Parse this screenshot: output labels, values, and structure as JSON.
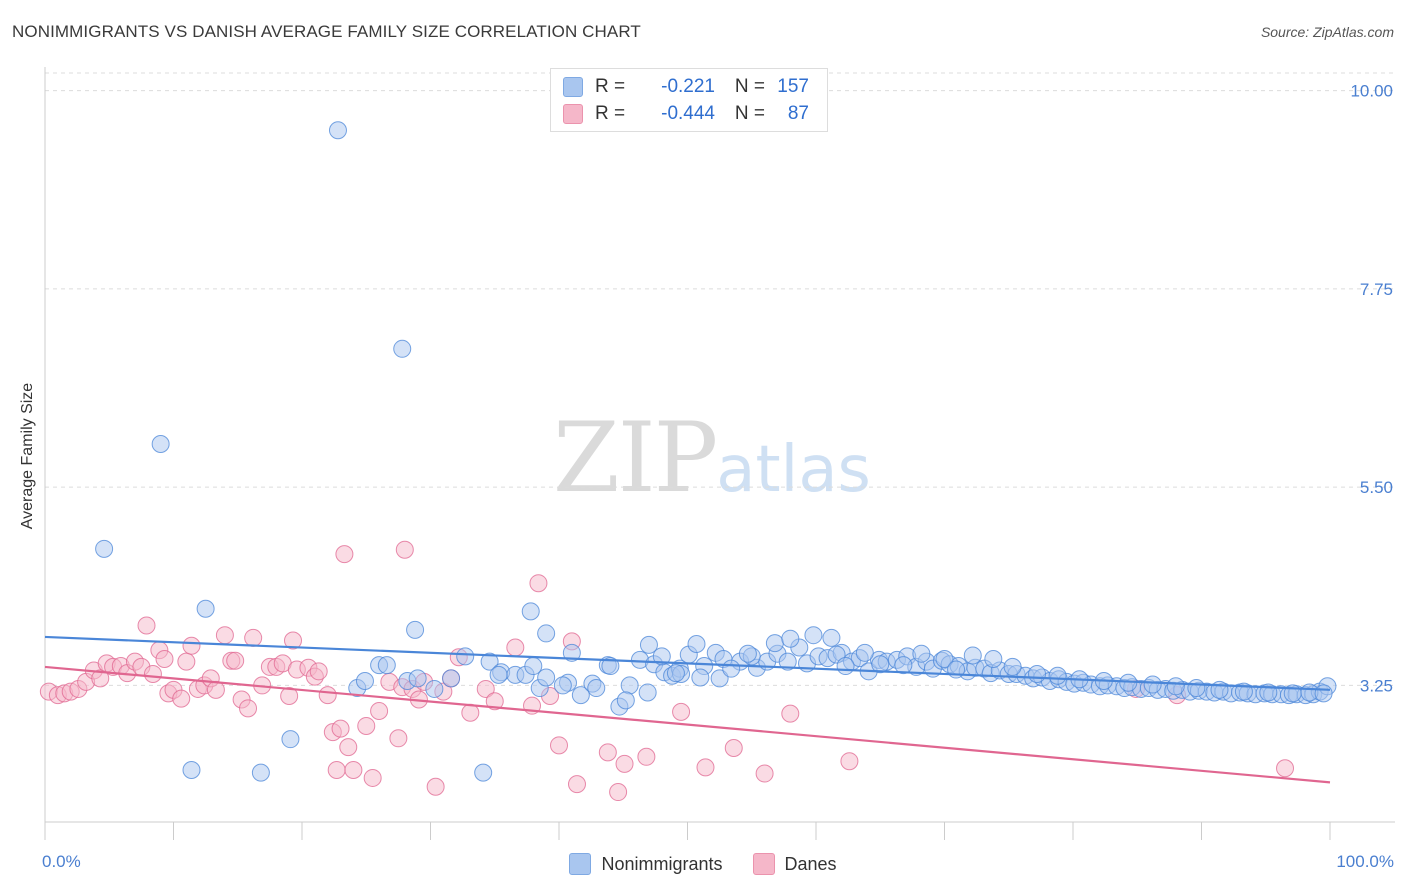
{
  "title": "NONIMMIGRANTS VS DANISH AVERAGE FAMILY SIZE CORRELATION CHART",
  "source": "Source: ZipAtlas.com",
  "watermark": {
    "zip": "ZIP",
    "atlas": "atlas"
  },
  "legend_stats": [
    {
      "r_label": "R =",
      "r_value": "-0.221",
      "n_label": "N =",
      "n_value": "157",
      "color": "#a9c6ef"
    },
    {
      "r_label": "R =",
      "r_value": "-0.444",
      "n_label": "N =",
      "n_value": "87",
      "color": "#f5b7c9"
    }
  ],
  "chart_data": {
    "type": "scatter",
    "title": "NONIMMIGRANTS VS DANISH AVERAGE FAMILY SIZE CORRELATION CHART",
    "xlabel": "",
    "ylabel": "Average Family Size",
    "xlim": [
      0,
      100
    ],
    "ylim": [
      1.7,
      10.2
    ],
    "x_tick_labels": [
      "0.0%",
      "100.0%"
    ],
    "y_ticks": [
      3.25,
      5.5,
      7.75,
      10.0
    ],
    "y_tick_labels": [
      "3.25",
      "5.50",
      "7.75",
      "10.00"
    ],
    "grid": "horizontal dashed",
    "legend": "bottom",
    "series": [
      {
        "name": "Nonimmigrants",
        "color": "#4a86d8",
        "fill": "#a9c6ef",
        "trend": {
          "x": [
            0,
            100
          ],
          "y": [
            3.8,
            3.2
          ]
        },
        "points": [
          [
            22.8,
            9.55
          ],
          [
            27.8,
            7.07
          ],
          [
            9.0,
            5.99
          ],
          [
            4.6,
            4.8
          ],
          [
            12.5,
            4.12
          ],
          [
            11.4,
            2.29
          ],
          [
            16.8,
            2.26
          ],
          [
            19.1,
            2.64
          ],
          [
            34.1,
            2.26
          ],
          [
            39.0,
            3.84
          ],
          [
            37.8,
            4.09
          ],
          [
            28.8,
            3.88
          ],
          [
            34.6,
            3.52
          ],
          [
            26.0,
            3.48
          ],
          [
            26.6,
            3.48
          ],
          [
            24.3,
            3.22
          ],
          [
            24.9,
            3.3
          ],
          [
            28.2,
            3.3
          ],
          [
            29.0,
            3.33
          ],
          [
            31.6,
            3.33
          ],
          [
            35.5,
            3.4
          ],
          [
            36.6,
            3.37
          ],
          [
            37.4,
            3.37
          ],
          [
            38.5,
            3.22
          ],
          [
            39.0,
            3.34
          ],
          [
            40.7,
            3.28
          ],
          [
            41.7,
            3.14
          ],
          [
            42.6,
            3.27
          ],
          [
            43.8,
            3.48
          ],
          [
            44.7,
            3.01
          ],
          [
            45.5,
            3.25
          ],
          [
            46.3,
            3.54
          ],
          [
            47.4,
            3.49
          ],
          [
            48.2,
            3.4
          ],
          [
            48.8,
            3.36
          ],
          [
            49.4,
            3.44
          ],
          [
            50.1,
            3.6
          ],
          [
            50.7,
            3.72
          ],
          [
            51.3,
            3.47
          ],
          [
            52.2,
            3.62
          ],
          [
            52.8,
            3.55
          ],
          [
            54.1,
            3.52
          ],
          [
            55.4,
            3.45
          ],
          [
            56.2,
            3.52
          ],
          [
            57.0,
            3.61
          ],
          [
            57.8,
            3.52
          ],
          [
            58.7,
            3.68
          ],
          [
            59.3,
            3.5
          ],
          [
            60.2,
            3.58
          ],
          [
            60.9,
            3.56
          ],
          [
            62.0,
            3.62
          ],
          [
            62.8,
            3.52
          ],
          [
            63.4,
            3.56
          ],
          [
            64.1,
            3.41
          ],
          [
            64.9,
            3.54
          ],
          [
            65.5,
            3.52
          ],
          [
            66.3,
            3.54
          ],
          [
            67.1,
            3.58
          ],
          [
            67.8,
            3.46
          ],
          [
            68.6,
            3.52
          ],
          [
            69.1,
            3.44
          ],
          [
            69.8,
            3.53
          ],
          [
            70.4,
            3.49
          ],
          [
            71.1,
            3.47
          ],
          [
            71.8,
            3.41
          ],
          [
            72.4,
            3.45
          ],
          [
            73.1,
            3.44
          ],
          [
            73.6,
            3.39
          ],
          [
            74.3,
            3.42
          ],
          [
            75.0,
            3.38
          ],
          [
            75.6,
            3.38
          ],
          [
            76.3,
            3.36
          ],
          [
            76.9,
            3.33
          ],
          [
            77.6,
            3.34
          ],
          [
            78.2,
            3.3
          ],
          [
            78.9,
            3.32
          ],
          [
            79.5,
            3.29
          ],
          [
            80.1,
            3.27
          ],
          [
            80.8,
            3.28
          ],
          [
            81.4,
            3.26
          ],
          [
            82.1,
            3.24
          ],
          [
            82.7,
            3.25
          ],
          [
            83.4,
            3.24
          ],
          [
            84.0,
            3.22
          ],
          [
            84.6,
            3.23
          ],
          [
            85.3,
            3.21
          ],
          [
            85.9,
            3.22
          ],
          [
            86.6,
            3.2
          ],
          [
            87.2,
            3.21
          ],
          [
            87.8,
            3.19
          ],
          [
            88.5,
            3.2
          ],
          [
            89.1,
            3.18
          ],
          [
            89.8,
            3.19
          ],
          [
            90.4,
            3.18
          ],
          [
            91.0,
            3.17
          ],
          [
            91.7,
            3.18
          ],
          [
            92.3,
            3.16
          ],
          [
            93.0,
            3.17
          ],
          [
            93.6,
            3.16
          ],
          [
            94.2,
            3.15
          ],
          [
            94.9,
            3.16
          ],
          [
            95.5,
            3.15
          ],
          [
            96.2,
            3.15
          ],
          [
            96.8,
            3.14
          ],
          [
            97.4,
            3.15
          ],
          [
            98.1,
            3.14
          ],
          [
            98.7,
            3.15
          ],
          [
            99.2,
            3.18
          ],
          [
            99.8,
            3.24
          ],
          [
            38.0,
            3.47
          ],
          [
            41.0,
            3.62
          ],
          [
            44.0,
            3.47
          ],
          [
            47.0,
            3.71
          ],
          [
            49.5,
            3.38
          ],
          [
            52.5,
            3.33
          ],
          [
            55.0,
            3.58
          ],
          [
            56.8,
            3.73
          ],
          [
            58.0,
            3.78
          ],
          [
            59.8,
            3.82
          ],
          [
            61.2,
            3.79
          ],
          [
            61.6,
            3.6
          ],
          [
            62.3,
            3.47
          ],
          [
            63.8,
            3.62
          ],
          [
            65.0,
            3.49
          ],
          [
            66.8,
            3.48
          ],
          [
            68.2,
            3.61
          ],
          [
            70.0,
            3.55
          ],
          [
            70.9,
            3.43
          ],
          [
            72.2,
            3.59
          ],
          [
            73.8,
            3.55
          ],
          [
            75.3,
            3.46
          ],
          [
            77.2,
            3.38
          ],
          [
            78.8,
            3.36
          ],
          [
            80.5,
            3.32
          ],
          [
            82.4,
            3.3
          ],
          [
            84.3,
            3.28
          ],
          [
            86.2,
            3.26
          ],
          [
            88.0,
            3.24
          ],
          [
            89.6,
            3.22
          ],
          [
            91.4,
            3.2
          ],
          [
            93.3,
            3.18
          ],
          [
            95.2,
            3.17
          ],
          [
            97.1,
            3.16
          ],
          [
            98.4,
            3.17
          ],
          [
            99.5,
            3.16
          ],
          [
            30.3,
            3.21
          ],
          [
            32.7,
            3.58
          ],
          [
            35.3,
            3.37
          ],
          [
            40.3,
            3.25
          ],
          [
            42.9,
            3.22
          ],
          [
            45.2,
            3.08
          ],
          [
            46.9,
            3.17
          ],
          [
            48.0,
            3.58
          ],
          [
            49.1,
            3.39
          ],
          [
            51.0,
            3.34
          ],
          [
            53.4,
            3.44
          ],
          [
            54.7,
            3.61
          ]
        ]
      },
      {
        "name": "Danes",
        "color": "#e06690",
        "fill": "#f5b7c9",
        "trend": {
          "x": [
            0,
            100
          ],
          "y": [
            3.46,
            2.15
          ]
        },
        "points": [
          [
            0.3,
            3.18
          ],
          [
            1.0,
            3.14
          ],
          [
            1.5,
            3.16
          ],
          [
            2.0,
            3.18
          ],
          [
            2.6,
            3.21
          ],
          [
            3.2,
            3.29
          ],
          [
            3.8,
            3.42
          ],
          [
            4.3,
            3.33
          ],
          [
            4.8,
            3.5
          ],
          [
            5.3,
            3.46
          ],
          [
            5.9,
            3.47
          ],
          [
            6.4,
            3.39
          ],
          [
            7.0,
            3.52
          ],
          [
            7.5,
            3.46
          ],
          [
            7.9,
            3.93
          ],
          [
            8.4,
            3.38
          ],
          [
            8.9,
            3.65
          ],
          [
            9.3,
            3.55
          ],
          [
            9.6,
            3.16
          ],
          [
            10.0,
            3.2
          ],
          [
            10.6,
            3.1
          ],
          [
            11.0,
            3.52
          ],
          [
            11.4,
            3.7
          ],
          [
            11.9,
            3.21
          ],
          [
            12.4,
            3.25
          ],
          [
            12.9,
            3.33
          ],
          [
            13.3,
            3.2
          ],
          [
            14.0,
            3.82
          ],
          [
            14.5,
            3.53
          ],
          [
            14.8,
            3.53
          ],
          [
            15.3,
            3.09
          ],
          [
            15.8,
            2.99
          ],
          [
            16.2,
            3.79
          ],
          [
            16.9,
            3.25
          ],
          [
            17.5,
            3.46
          ],
          [
            18.0,
            3.46
          ],
          [
            18.5,
            3.5
          ],
          [
            19.0,
            3.13
          ],
          [
            19.3,
            3.76
          ],
          [
            19.6,
            3.43
          ],
          [
            20.5,
            3.45
          ],
          [
            21.0,
            3.35
          ],
          [
            21.3,
            3.41
          ],
          [
            22.0,
            3.14
          ],
          [
            22.4,
            2.72
          ],
          [
            22.7,
            2.29
          ],
          [
            23.0,
            2.76
          ],
          [
            23.3,
            4.74
          ],
          [
            23.6,
            2.55
          ],
          [
            24.0,
            2.29
          ],
          [
            25.0,
            2.79
          ],
          [
            25.5,
            2.2
          ],
          [
            26.0,
            2.96
          ],
          [
            26.8,
            3.29
          ],
          [
            27.5,
            2.65
          ],
          [
            27.8,
            3.23
          ],
          [
            28.0,
            4.79
          ],
          [
            28.6,
            3.21
          ],
          [
            29.1,
            3.09
          ],
          [
            29.5,
            3.29
          ],
          [
            30.4,
            2.1
          ],
          [
            31.0,
            3.18
          ],
          [
            31.6,
            3.33
          ],
          [
            32.2,
            3.57
          ],
          [
            33.1,
            2.94
          ],
          [
            34.3,
            3.21
          ],
          [
            35.0,
            3.07
          ],
          [
            36.6,
            3.68
          ],
          [
            37.9,
            3.02
          ],
          [
            38.4,
            4.41
          ],
          [
            39.3,
            3.13
          ],
          [
            40.0,
            2.57
          ],
          [
            41.0,
            3.75
          ],
          [
            41.4,
            2.13
          ],
          [
            43.8,
            2.49
          ],
          [
            44.6,
            2.04
          ],
          [
            45.1,
            2.36
          ],
          [
            46.8,
            2.44
          ],
          [
            49.5,
            2.95
          ],
          [
            51.4,
            2.32
          ],
          [
            53.6,
            2.54
          ],
          [
            56.0,
            2.25
          ],
          [
            58.0,
            2.93
          ],
          [
            62.6,
            2.39
          ],
          [
            84.9,
            3.21
          ],
          [
            88.1,
            3.14
          ],
          [
            96.5,
            2.31
          ]
        ]
      }
    ]
  }
}
